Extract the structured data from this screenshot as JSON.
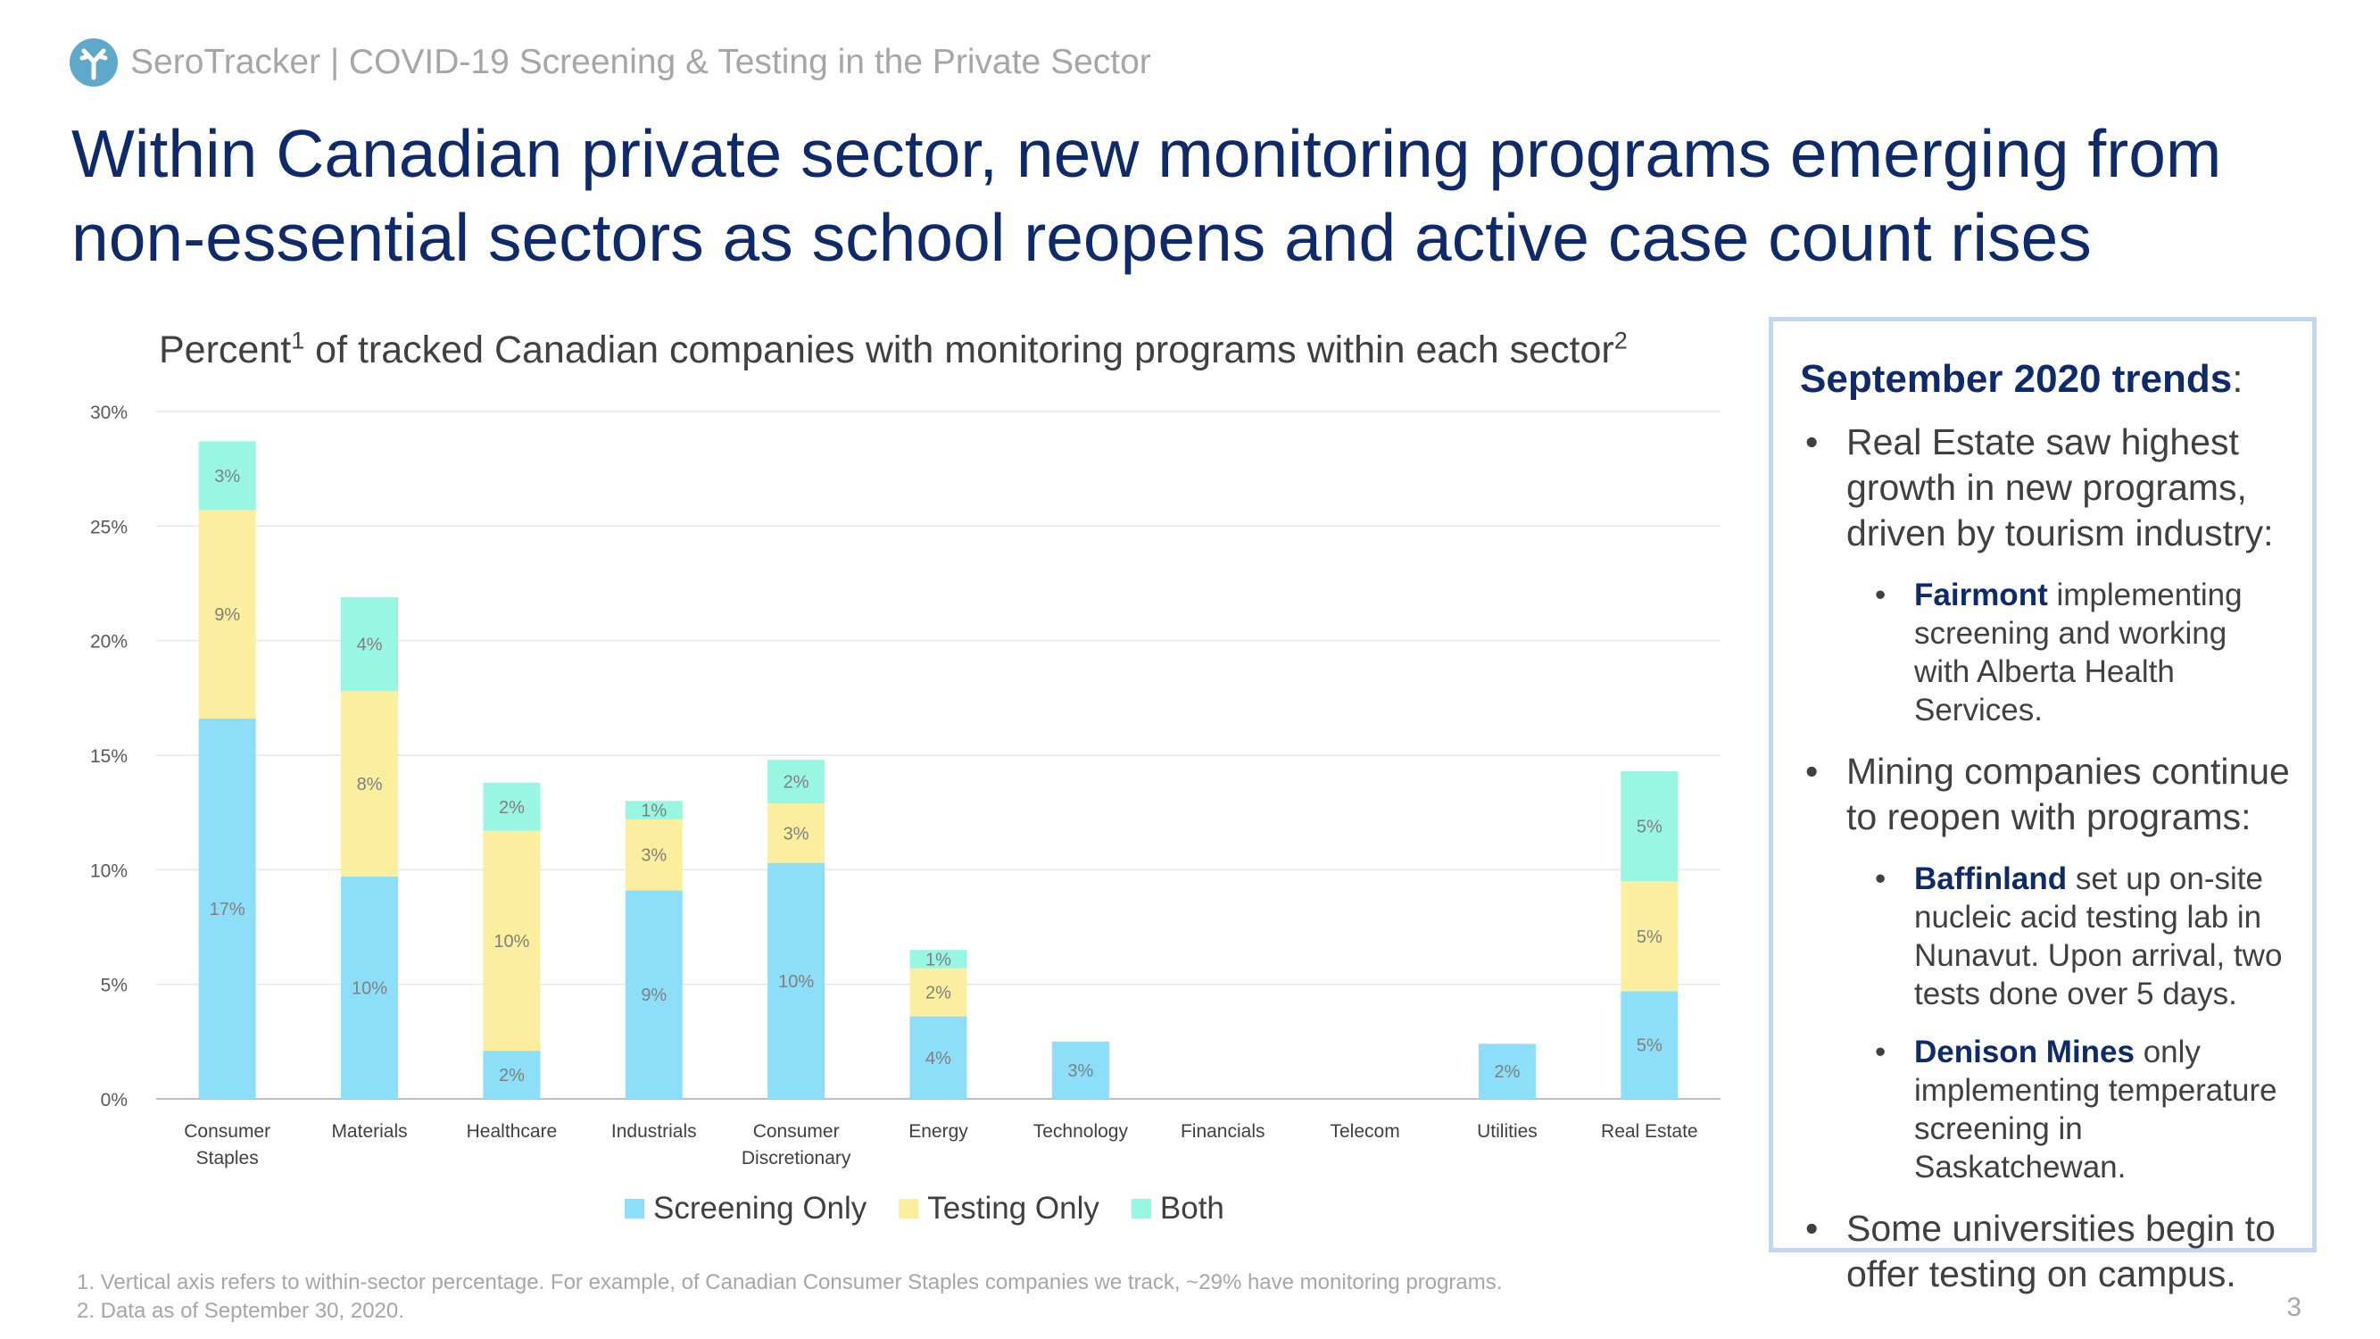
{
  "header": {
    "brand_text": "SeroTracker | COVID-19 Screening & Testing in the Private Sector"
  },
  "headline": "Within Canadian private sector, new monitoring programs emerging from non-essential sectors as school reopens and active case count rises",
  "chart_title": {
    "prefix": "Percent",
    "sup1": "1",
    "middle": " of tracked Canadian companies with monitoring programs within each sector",
    "sup2": "2"
  },
  "chart_data": {
    "type": "bar",
    "stacked": true,
    "categories": [
      [
        "Consumer",
        "Staples"
      ],
      [
        "Materials"
      ],
      [
        "Healthcare"
      ],
      [
        "Industrials"
      ],
      [
        "Consumer",
        "Discretionary"
      ],
      [
        "Energy"
      ],
      [
        "Technology"
      ],
      [
        "Financials"
      ],
      [
        "Telecom"
      ],
      [
        "Utilities"
      ],
      [
        "Real Estate"
      ]
    ],
    "series": [
      {
        "name": "Screening Only",
        "color": "#8ddff9",
        "values": [
          16.6,
          9.7,
          2.1,
          9.1,
          10.3,
          3.6,
          2.5,
          0,
          0,
          2.4,
          4.7
        ],
        "labels": [
          "17%",
          "10%",
          "2%",
          "9%",
          "10%",
          "4%",
          "3%",
          "",
          "",
          "2%",
          "5%"
        ]
      },
      {
        "name": "Testing Only",
        "color": "#fcee9f",
        "values": [
          9.1,
          8.1,
          9.6,
          3.1,
          2.6,
          2.1,
          0,
          0,
          0,
          0,
          4.8
        ],
        "labels": [
          "9%",
          "8%",
          "10%",
          "3%",
          "3%",
          "2%",
          "",
          "",
          "",
          "",
          "5%"
        ]
      },
      {
        "name": "Both",
        "color": "#99f6e3",
        "values": [
          3.0,
          4.1,
          2.1,
          0.8,
          1.9,
          0.8,
          0,
          0,
          0,
          0,
          4.8
        ],
        "labels": [
          "3%",
          "4%",
          "2%",
          "1%",
          "2%",
          "1%",
          "",
          "",
          "",
          "",
          "5%"
        ]
      }
    ],
    "ylim": [
      0,
      30
    ],
    "yticks": [
      0,
      5,
      10,
      15,
      20,
      25,
      30
    ],
    "ytick_labels": [
      "0%",
      "5%",
      "10%",
      "15%",
      "20%",
      "25%",
      "30%"
    ],
    "grid": true,
    "legend_position": "bottom"
  },
  "trends": {
    "title": "September 2020 trends",
    "colon": ":",
    "bullet1": "Real Estate saw highest growth in new programs, driven by tourism industry:",
    "sub1_bold": "Fairmont",
    "sub1_text": " implementing screening and working with Alberta Health Services.",
    "bullet2": "Mining companies continue to reopen with programs:",
    "sub2_bold": "Baffinland",
    "sub2_text": " set up on-site nucleic acid testing lab in Nunavut. Upon arrival, two tests done over 5 days.",
    "sub3_bold": "Denison Mines",
    "sub3_text": " only implementing temperature screening in Saskatchewan.",
    "bullet3": "Some universities begin to offer testing on campus."
  },
  "footnotes": {
    "note1": "1. Vertical axis refers to within-sector percentage. For example, of Canadian Consumer Staples companies we track, ~29% have monitoring programs.",
    "note2": "2. Data as of September 30, 2020."
  },
  "page_number": "3"
}
